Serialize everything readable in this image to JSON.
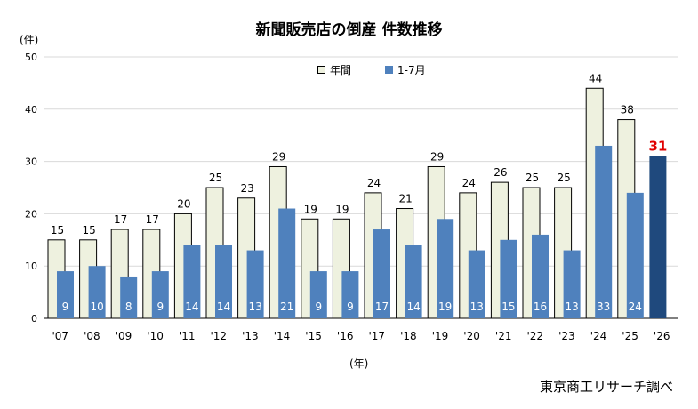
{
  "chart_data": {
    "type": "bar",
    "title": "新聞販売店の倒産  件数推移",
    "y_unit": "(件)",
    "x_unit": "(年)",
    "source": "東京商工リサーチ調べ",
    "categories": [
      "'07",
      "'08",
      "'09",
      "'10",
      "'11",
      "'12",
      "'13",
      "'14",
      "'15",
      "'16",
      "'17",
      "'18",
      "'19",
      "'20",
      "'21",
      "'22",
      "'23",
      "'24",
      "'25",
      "'26"
    ],
    "series": [
      {
        "name": "年間",
        "values": [
          15,
          15,
          17,
          17,
          20,
          25,
          23,
          29,
          19,
          19,
          24,
          21,
          29,
          24,
          26,
          25,
          25,
          44,
          38,
          null
        ],
        "color": "#eef1df",
        "stroke": "#000000"
      },
      {
        "name": "1-7月",
        "values": [
          9,
          10,
          8,
          9,
          14,
          14,
          13,
          21,
          9,
          9,
          17,
          14,
          19,
          13,
          15,
          16,
          13,
          33,
          24,
          31
        ],
        "color": "#4f81bd"
      }
    ],
    "highlight": {
      "category": "'26",
      "value": 31,
      "bar_color": "#1f497d",
      "label_color": "#e00000"
    },
    "ylim": [
      0,
      50
    ],
    "yticks": [
      0,
      10,
      20,
      30,
      40,
      50
    ],
    "grid": true,
    "legend_position": "top-center"
  }
}
